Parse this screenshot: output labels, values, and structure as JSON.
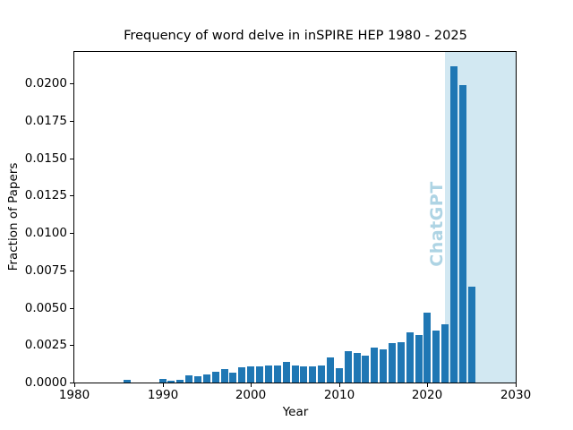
{
  "figure": {
    "background": "#ffffff"
  },
  "chart_data": {
    "type": "bar",
    "title": "Frequency of word delve in inSPIRE HEP 1980 - 2025",
    "xlabel": "Year",
    "ylabel": "Fraction of Papers",
    "x": [
      1980,
      1981,
      1982,
      1983,
      1984,
      1985,
      1986,
      1987,
      1988,
      1989,
      1990,
      1991,
      1992,
      1993,
      1994,
      1995,
      1996,
      1997,
      1998,
      1999,
      2000,
      2001,
      2002,
      2003,
      2004,
      2005,
      2006,
      2007,
      2008,
      2009,
      2010,
      2011,
      2012,
      2013,
      2014,
      2015,
      2016,
      2017,
      2018,
      2019,
      2020,
      2021,
      2022,
      2023,
      2024,
      2025
    ],
    "values": [
      0,
      0,
      0,
      0,
      0,
      0,
      0.0002,
      0,
      0,
      0,
      0.00025,
      0.0001,
      0.0002,
      0.00045,
      0.0004,
      0.00055,
      0.0007,
      0.0009,
      0.00065,
      0.001,
      0.00105,
      0.0011,
      0.00115,
      0.00115,
      0.00135,
      0.00115,
      0.0011,
      0.00105,
      0.00115,
      0.00165,
      0.00095,
      0.0021,
      0.002,
      0.0018,
      0.00235,
      0.00222,
      0.00265,
      0.00272,
      0.00337,
      0.00318,
      0.00465,
      0.0035,
      0.00392,
      0.02114,
      0.0199,
      0.0064
    ],
    "bar_color": "#1f77b4",
    "bar_width_years": 0.8,
    "xlim": [
      1980,
      2030
    ],
    "ylim": [
      0,
      0.0221
    ],
    "xticks": [
      1980,
      1990,
      2000,
      2010,
      2020,
      2030
    ],
    "xtick_labels": [
      "1980",
      "1990",
      "2000",
      "2010",
      "2020",
      "2030"
    ],
    "yticks": [
      0,
      0.0025,
      0.005,
      0.0075,
      0.01,
      0.0125,
      0.015,
      0.0175,
      0.02
    ],
    "ytick_labels": [
      "0.0000",
      "0.0025",
      "0.0050",
      "0.0075",
      "0.0100",
      "0.0125",
      "0.0150",
      "0.0175",
      "0.0200"
    ],
    "grid": false,
    "legend": null,
    "span": {
      "from_x": 2022,
      "to_x": 2030,
      "color": "#d2e8f2"
    },
    "annotation": {
      "text": "ChatGPT",
      "color": "#aed4e4",
      "x": 2021.05,
      "y": 0.0106,
      "rotation_deg": 90,
      "bold": true
    }
  }
}
